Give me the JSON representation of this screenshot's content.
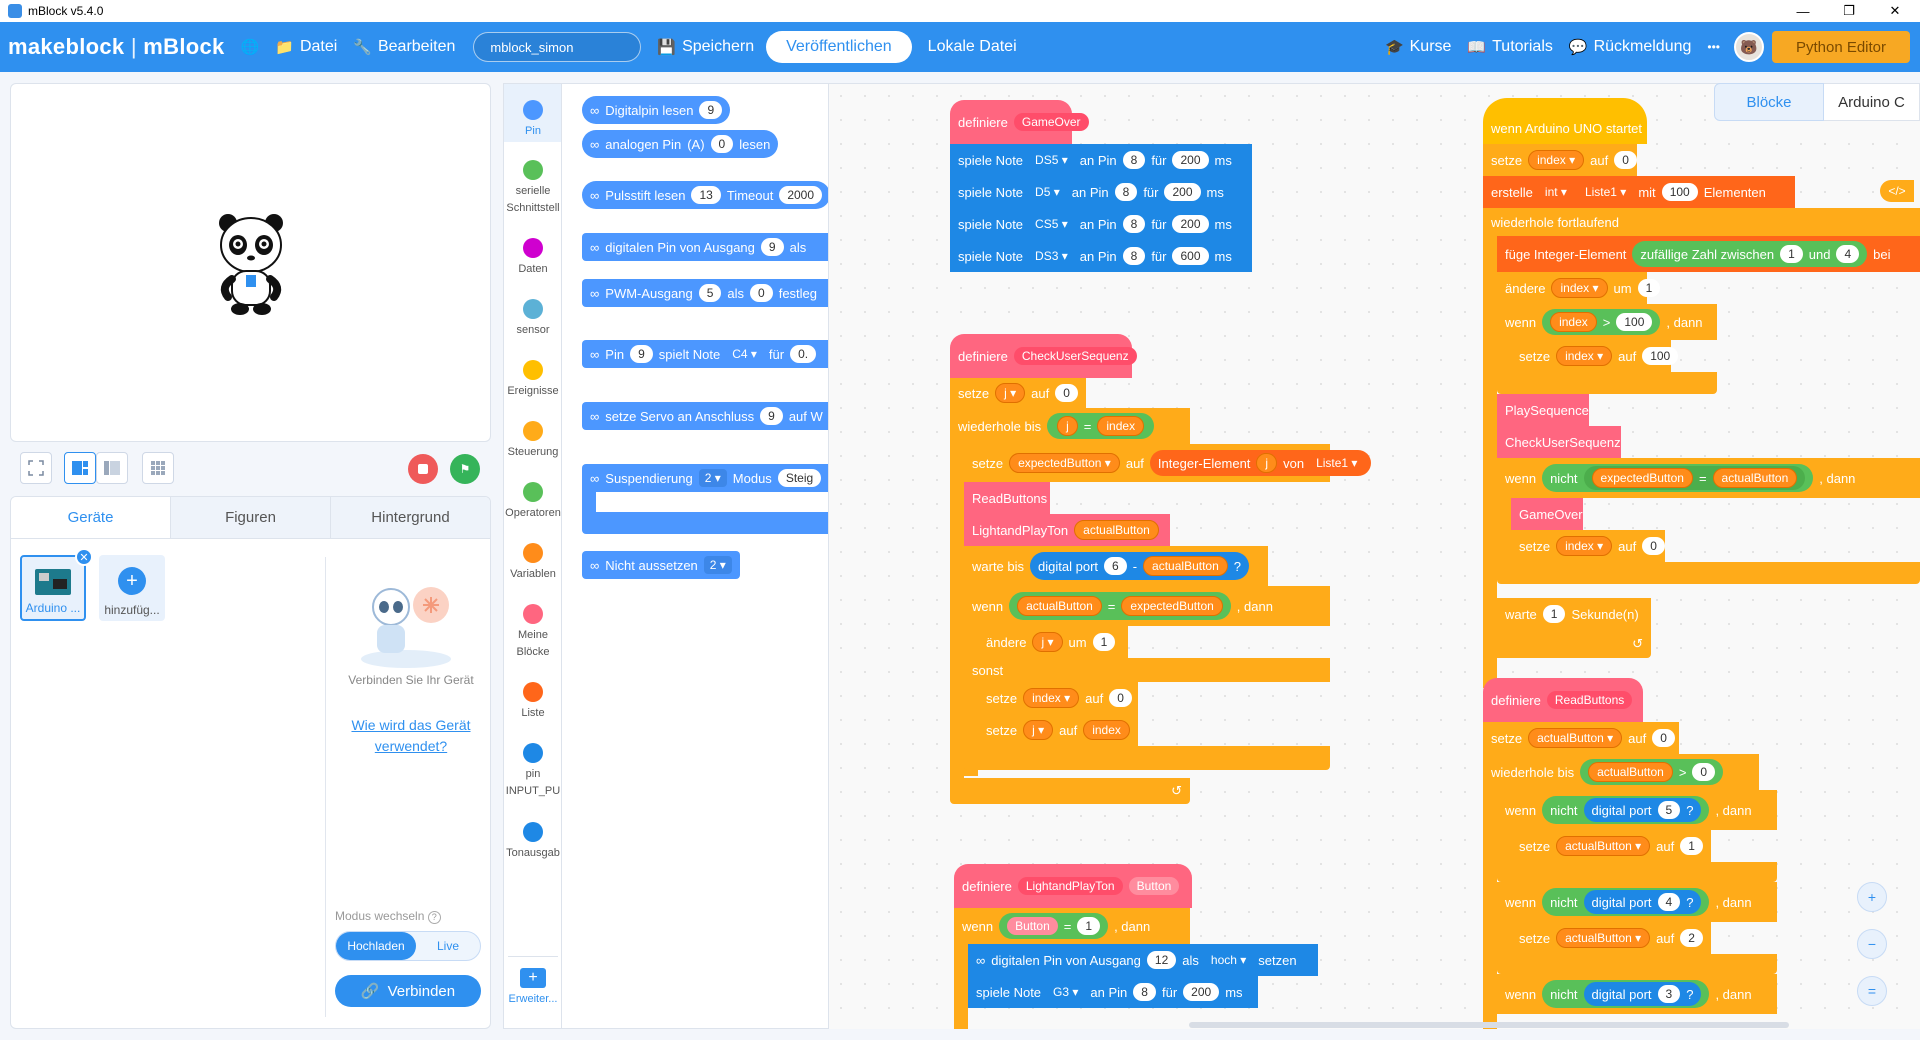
{
  "window": {
    "title": "mBlock v5.4.0"
  },
  "menu": {
    "logo_brand": "makeblock",
    "logo_sep": " | ",
    "logo_app": "mBlock",
    "file": "Datei",
    "edit": "Bearbeiten",
    "project_name": "mblock_simon",
    "save": "Speichern",
    "publish": "Veröffentlichen",
    "local_file": "Lokale Datei",
    "courses": "Kurse",
    "tutorials": "Tutorials",
    "feedback": "Rückmeldung",
    "more": "•••",
    "python_editor": "Python Editor"
  },
  "colors": {
    "accent": "#2f90ef",
    "python": "#f7a823"
  },
  "device_panel": {
    "tabs": [
      "Geräte",
      "Figuren",
      "Hintergrund"
    ],
    "device_name": "Arduino ...",
    "add_label": "hinzufüg...",
    "connect_hint": "Verbinden Sie Ihr Gerät",
    "help_link": "Wie wird das Gerät verwendet?",
    "mode_label": "Modus wechseln",
    "mode_upload": "Hochladen",
    "mode_live": "Live",
    "connect_button": "Verbinden"
  },
  "categories": [
    {
      "label": "Pin",
      "color": "#4c97ff"
    },
    {
      "label": "serielle Schnittstell",
      "color": "#59c059"
    },
    {
      "label": "Daten",
      "color": "#cf00cf"
    },
    {
      "label": "sensor",
      "color": "#5cb1d6"
    },
    {
      "label": "Ereignisse",
      "color": "#ffbf00"
    },
    {
      "label": "Steuerung",
      "color": "#ffab19"
    },
    {
      "label": "Operatoren",
      "color": "#59c059"
    },
    {
      "label": "Variablen",
      "color": "#ff8c1a"
    },
    {
      "label": "Meine Blöcke",
      "color": "#ff6680"
    },
    {
      "label": "Liste",
      "color": "#ff661a"
    },
    {
      "label": "pin INPUT_PU",
      "color": "#1e88e5"
    },
    {
      "label": "Tonausgab",
      "color": "#1e88e5"
    }
  ],
  "extension_label": "Erweiter...",
  "palette": {
    "digitalpin_read": "Digitalpin lesen",
    "v9": "9",
    "analog_read": "analogen Pin",
    "analog_a": "(A)",
    "v0": "0",
    "read": "lesen",
    "pulse": "Pulsstift lesen",
    "v13": "13",
    "timeout": "Timeout",
    "v2000": "2000",
    "digital_out": "digitalen Pin von Ausgang",
    "als": "als",
    "pwm": "PWM-Ausgang",
    "v5": "5",
    "festleg": "festleg",
    "pin": "Pin",
    "plays_note": "spielt Note",
    "c4": "C4 ▾",
    "fuer": "für",
    "o": "0.",
    "servo": "setze Servo an Anschluss",
    "auf_w": "auf W",
    "suspend": "Suspendierung",
    "v2": "2 ▾",
    "modus": "Modus",
    "steig": "Steig",
    "nicht_aussetzen": "Nicht aussetzen"
  },
  "script_gameover": {
    "define": "definiere",
    "name": "GameOver",
    "rows": [
      {
        "note": "DS5 ▾",
        "pin": "8",
        "dur": "200"
      },
      {
        "note": "D5 ▾",
        "pin": "8",
        "dur": "200"
      },
      {
        "note": "CS5 ▾",
        "pin": "8",
        "dur": "200"
      },
      {
        "note": "DS3 ▾",
        "pin": "8",
        "dur": "600"
      }
    ],
    "play": "spiele Note",
    "at_pin": "an Pin",
    "for": "für",
    "ms": "ms"
  },
  "script_check": {
    "define": "definiere",
    "name": "CheckUserSequenz",
    "set": "setze",
    "j": "j ▾",
    "to": "auf",
    "v0": "0",
    "repeat_until": "wiederhole bis",
    "j_var": "j",
    "eq": "=",
    "index": "index",
    "expected": "expectedButton ▾",
    "int_el": "Integer-Element",
    "from": "von",
    "liste1": "Liste1 ▾",
    "readbuttons": "ReadButtons",
    "lightplay": "LightandPlayTon",
    "actual": "actualButton",
    "wait_until": "warte bis",
    "digital_port": "digital port",
    "v6": "6",
    "minus": "-",
    "q": "?",
    "if": "wenn",
    "expected_v": "expectedButton",
    "then": ", dann",
    "change": "ändere",
    "by": "um",
    "v1": "1",
    "else": "sonst",
    "index_dd": "index ▾",
    "j_dd": "j ▾",
    "index_v": "index"
  },
  "script_light": {
    "define": "definiere",
    "name": "LightandPlayTon",
    "param": "Button",
    "if": "wenn",
    "eq": "=",
    "v1": "1",
    "then": ", dann",
    "digital_out": "digitalen Pin von Ausgang",
    "v12": "12",
    "als": "als",
    "high": "hoch ▾",
    "set": "setzen",
    "play": "spiele Note",
    "g3": "G3 ▾",
    "at_pin": "an Pin",
    "v8": "8",
    "for": "für",
    "v200": "200",
    "ms": "ms"
  },
  "script_main": {
    "hat": "wenn Arduino UNO startet",
    "set": "setze",
    "index": "index ▾",
    "to": "auf",
    "v0": "0",
    "create": "erstelle",
    "int": "int ▾",
    "liste1": "Liste1 ▾",
    "with": "mit",
    "v100": "100",
    "elements": "Elementen",
    "forever": "wiederhole fortlaufend",
    "add_int": "füge Integer-Element",
    "random": "zufällige Zahl zwischen",
    "v1": "1",
    "and": "und",
    "v4": "4",
    "bei": "bei",
    "change": "ändere",
    "by": "um",
    "if": "wenn",
    "index_v": "index",
    "gt": ">",
    "then": ", dann",
    "playseq": "PlaySequence",
    "checkseq": "CheckUserSequenz",
    "not": "nicht",
    "expected": "expectedButton",
    "eq": "=",
    "actual": "actualButton",
    "gameover": "GameOver",
    "wait": "warte",
    "seconds": "Sekunde(n)"
  },
  "script_read": {
    "define": "definiere",
    "name": "ReadButtons",
    "set": "setze",
    "actual_dd": "actualButton ▾",
    "to": "auf",
    "v0": "0",
    "repeat_until": "wiederhole bis",
    "actual": "actualButton",
    "gt": ">",
    "if": "wenn",
    "not": "nicht",
    "digital_port": "digital port",
    "v5": "5",
    "v4": "4",
    "v3": "3",
    "q": "?",
    "then": ", dann",
    "v1": "1",
    "v2": "2"
  },
  "right_tabs": {
    "blocks": "Blöcke",
    "device": "Arduino C"
  }
}
